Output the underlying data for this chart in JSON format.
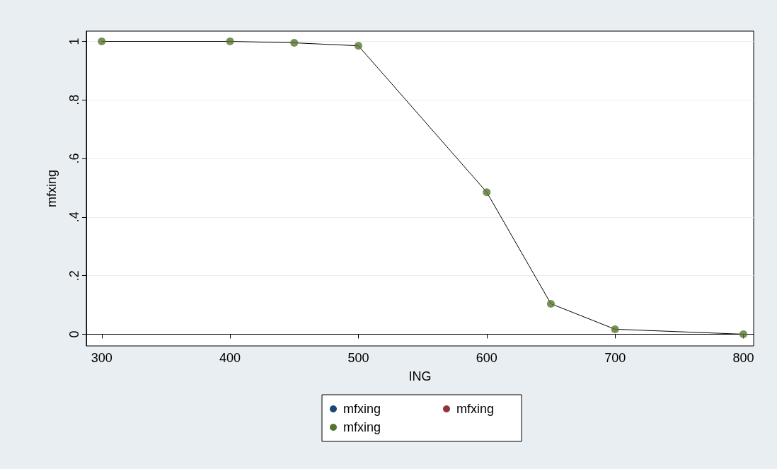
{
  "chart_data": {
    "type": "scatter",
    "xlabel": "ING",
    "ylabel": "mfxing",
    "x": [
      300,
      400,
      450,
      500,
      600,
      650,
      700,
      800
    ],
    "series": [
      {
        "type": "line",
        "marker": "none",
        "color": "#000000",
        "values": [
          1.0,
          1.0,
          0.995,
          0.985,
          0.485,
          0.104,
          0.017,
          0.0
        ]
      },
      {
        "name": "mfxing",
        "color": "#1a476f",
        "values": [
          null,
          null,
          null,
          null,
          null,
          null,
          null,
          null
        ]
      },
      {
        "name": "mfxing",
        "color": "#90353b",
        "values": [
          null,
          null,
          null,
          null,
          null,
          null,
          null,
          null
        ]
      },
      {
        "name": "mfxing",
        "color": "#55752f",
        "values": [
          1.0,
          1.0,
          0.995,
          0.985,
          0.485,
          0.104,
          0.017,
          0.0
        ]
      }
    ],
    "xlim": [
      288,
      808
    ],
    "xticks": [
      300,
      400,
      500,
      600,
      700,
      800
    ],
    "ylim": [
      -0.04,
      1.035
    ],
    "yticks": [
      0,
      {
        "value": 0.2,
        "label": ".2"
      },
      {
        "value": 0.4,
        "label": ".4"
      },
      {
        "value": 0.6,
        "label": ".6"
      },
      {
        "value": 0.8,
        "label": ".8"
      },
      1
    ],
    "grid": "y",
    "legend": "bottom",
    "marker": "circle",
    "line_style": "solid"
  }
}
